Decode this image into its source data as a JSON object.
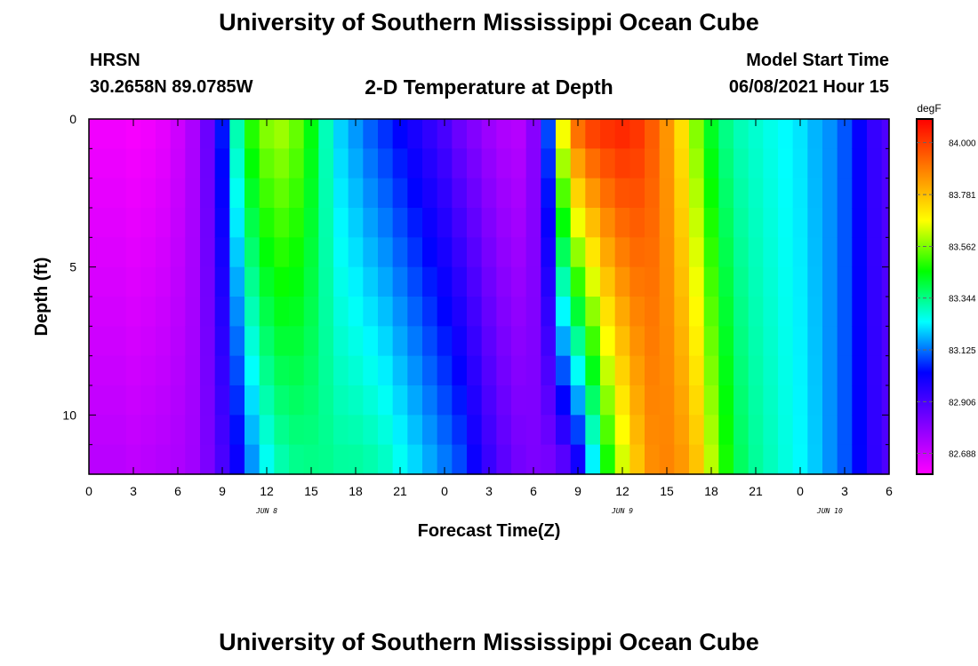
{
  "header": {
    "title": "University of Southern Mississippi Ocean Cube",
    "footer_title": "University of Southern Mississippi Ocean Cube",
    "station": "HRSN",
    "coordinates": "30.2658N  89.0785W",
    "plot_title": "2-D Temperature at Depth",
    "model_start_label": "Model Start Time",
    "model_start_value": "06/08/2021 Hour 15"
  },
  "chart_data": {
    "type": "heatmap",
    "title": "2-D Temperature at Depth",
    "xlabel": "Forecast Time(Z)",
    "ylabel": "Depth (ft)",
    "x_hours_range": [
      0,
      54
    ],
    "x_ticks": [
      "0",
      "3",
      "6",
      "9",
      "12",
      "15",
      "18",
      "21",
      "0",
      "3",
      "6",
      "9",
      "12",
      "15",
      "18",
      "21",
      "0",
      "3",
      "6"
    ],
    "date_labels": [
      {
        "label": "JUN 8",
        "hour": 12
      },
      {
        "label": "JUN 9",
        "hour": 36
      },
      {
        "label": "JUN 10",
        "hour": 50
      }
    ],
    "y_range": [
      0,
      12
    ],
    "y_ticks": [
      "0",
      "5",
      "10"
    ],
    "colorbar": {
      "unit": "degF",
      "min": 82.6,
      "max": 84.1,
      "tick_labels": [
        "84.000",
        "83.781",
        "83.562",
        "83.344",
        "83.125",
        "82.906",
        "82.688"
      ],
      "colors": [
        "#ff00ff",
        "#8000ff",
        "#0000ff",
        "#00ffff",
        "#00ff00",
        "#ffff00",
        "#ff8000",
        "#ff0000"
      ]
    },
    "depth_profile_ft": [
      0,
      12
    ],
    "profiles": {
      "surface": [
        [
          0,
          82.62
        ],
        [
          1,
          82.62
        ],
        [
          2,
          82.62
        ],
        [
          3,
          82.61
        ],
        [
          4,
          82.62
        ],
        [
          5,
          82.64
        ],
        [
          6,
          82.68
        ],
        [
          7,
          82.74
        ],
        [
          8,
          82.85
        ],
        [
          9,
          83.05
        ],
        [
          10,
          83.32
        ],
        [
          11,
          83.5
        ],
        [
          12,
          83.58
        ],
        [
          13,
          83.6
        ],
        [
          14,
          83.55
        ],
        [
          15,
          83.45
        ],
        [
          16,
          83.3
        ],
        [
          17,
          83.2
        ],
        [
          18,
          83.15
        ],
        [
          19,
          83.1
        ],
        [
          20,
          83.06
        ],
        [
          21,
          83.02
        ],
        [
          22,
          82.98
        ],
        [
          23,
          82.94
        ],
        [
          24,
          82.9
        ],
        [
          25,
          82.84
        ],
        [
          26,
          82.8
        ],
        [
          27,
          82.76
        ],
        [
          28,
          82.73
        ],
        [
          29,
          82.72
        ],
        [
          30,
          82.8
        ],
        [
          31,
          83.1
        ],
        [
          32,
          83.7
        ],
        [
          33,
          83.95
        ],
        [
          34,
          84.02
        ],
        [
          35,
          84.04
        ],
        [
          36,
          84.05
        ],
        [
          37,
          84.02
        ],
        [
          38,
          83.95
        ],
        [
          39,
          83.85
        ],
        [
          40,
          83.72
        ],
        [
          41,
          83.56
        ],
        [
          42,
          83.42
        ],
        [
          43,
          83.34
        ],
        [
          44,
          83.3
        ],
        [
          45,
          83.28
        ],
        [
          46,
          83.26
        ],
        [
          47,
          83.24
        ],
        [
          48,
          83.22
        ],
        [
          49,
          83.18
        ],
        [
          50,
          83.15
        ],
        [
          51,
          83.1
        ],
        [
          52,
          83.02
        ],
        [
          53,
          82.94
        ],
        [
          54,
          82.9
        ]
      ],
      "bottom": [
        [
          0,
          82.72
        ],
        [
          1,
          82.72
        ],
        [
          2,
          82.72
        ],
        [
          3,
          82.71
        ],
        [
          4,
          82.72
        ],
        [
          5,
          82.73
        ],
        [
          6,
          82.74
        ],
        [
          7,
          82.76
        ],
        [
          8,
          82.82
        ],
        [
          9,
          82.9
        ],
        [
          10,
          83.0
        ],
        [
          11,
          83.14
        ],
        [
          12,
          83.24
        ],
        [
          13,
          83.3
        ],
        [
          14,
          83.33
        ],
        [
          15,
          83.34
        ],
        [
          16,
          83.34
        ],
        [
          17,
          83.33
        ],
        [
          18,
          83.33
        ],
        [
          19,
          83.32
        ],
        [
          20,
          83.3
        ],
        [
          21,
          83.26
        ],
        [
          22,
          83.22
        ],
        [
          23,
          83.18
        ],
        [
          24,
          83.14
        ],
        [
          25,
          83.1
        ],
        [
          26,
          83.02
        ],
        [
          27,
          82.94
        ],
        [
          28,
          82.88
        ],
        [
          29,
          82.84
        ],
        [
          30,
          82.82
        ],
        [
          31,
          82.82
        ],
        [
          32,
          82.85
        ],
        [
          33,
          82.96
        ],
        [
          34,
          83.2
        ],
        [
          35,
          83.45
        ],
        [
          36,
          83.62
        ],
        [
          37,
          83.76
        ],
        [
          38,
          83.86
        ],
        [
          39,
          83.88
        ],
        [
          40,
          83.85
        ],
        [
          41,
          83.78
        ],
        [
          42,
          83.62
        ],
        [
          43,
          83.48
        ],
        [
          44,
          83.38
        ],
        [
          45,
          83.33
        ],
        [
          46,
          83.3
        ],
        [
          47,
          83.27
        ],
        [
          48,
          83.24
        ],
        [
          49,
          83.2
        ],
        [
          50,
          83.15
        ],
        [
          51,
          83.1
        ],
        [
          52,
          83.03
        ],
        [
          53,
          82.95
        ],
        [
          54,
          82.9
        ]
      ]
    }
  }
}
